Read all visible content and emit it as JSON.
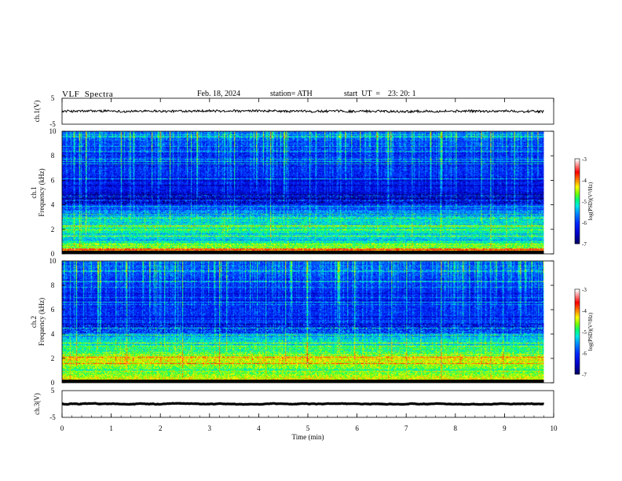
{
  "header": {
    "title": "VLF  Spectra",
    "date": "Feb. 18, 2024",
    "station": "station= ATH",
    "start": "start  UT  =    23: 20: 1"
  },
  "chart_data": [
    {
      "type": "line",
      "name": "ch1-waveform",
      "ylabel": "ch.1(V)",
      "yticks": [
        "5",
        "-5"
      ],
      "ylim": [
        -5,
        5
      ],
      "x_range": [
        0,
        9.8
      ],
      "baseline": 0.0,
      "noise_amplitude": 0.6
    },
    {
      "type": "heatmap",
      "name": "ch1-spectrogram",
      "ylabel": "ch.1\nFrequency (kHz)",
      "ylabel_lines": [
        "ch.1",
        "Frequency (kHz)"
      ],
      "yticks": [
        "0",
        "2",
        "4",
        "6",
        "8",
        "10"
      ],
      "ylim": [
        0,
        10
      ],
      "x_range": [
        0,
        9.8
      ],
      "colorbar": {
        "label": "log(PSD)(V²/Hz)",
        "ticks": [
          "-3",
          "-4",
          "-5",
          "-6",
          "-7"
        ],
        "range": [
          -7,
          -3
        ],
        "colors": [
          "#000060",
          "#0000ff",
          "#00a0ff",
          "#00ffff",
          "#00ff80",
          "#80ff00",
          "#ffff00",
          "#ff8000",
          "#ff0000",
          "#ffffff"
        ]
      },
      "band_levels": [
        {
          "f": 0.3,
          "level": -4.2
        },
        {
          "f": 0.8,
          "level": -4.6
        },
        {
          "f": 1.2,
          "level": -5.3
        },
        {
          "f": 2.2,
          "level": -4.9
        },
        {
          "f": 3.5,
          "level": -5.6
        },
        {
          "f": 4.5,
          "level": -6.4
        },
        {
          "f": 6.5,
          "level": -6.1
        },
        {
          "f": 8.5,
          "level": -6.0
        },
        {
          "f": 10.0,
          "level": -5.7
        }
      ]
    },
    {
      "type": "heatmap",
      "name": "ch2-spectrogram",
      "ylabel": "ch.2\nFrequency (kHz)",
      "ylabel_lines": [
        "ch.2",
        "Frequency (kHz)"
      ],
      "yticks": [
        "0",
        "2",
        "4",
        "6",
        "8",
        "10"
      ],
      "ylim": [
        0,
        10
      ],
      "x_range": [
        0,
        9.8
      ],
      "colorbar": {
        "label": "log(PSD)(V²/Hz)",
        "ticks": [
          "-3",
          "-4",
          "-5",
          "-6",
          "-7"
        ],
        "range": [
          -7,
          -3
        ]
      },
      "band_levels": [
        {
          "f": 0.3,
          "level": -4.3
        },
        {
          "f": 1.0,
          "level": -4.8
        },
        {
          "f": 2.0,
          "level": -4.3
        },
        {
          "f": 3.0,
          "level": -5.0
        },
        {
          "f": 4.0,
          "level": -5.5
        },
        {
          "f": 5.0,
          "level": -6.0
        },
        {
          "f": 7.0,
          "level": -6.2
        },
        {
          "f": 8.5,
          "level": -6.0
        },
        {
          "f": 10.0,
          "level": -5.7
        }
      ]
    },
    {
      "type": "line",
      "name": "ch3-waveform",
      "ylabel": "ch.3(V)",
      "yticks": [
        "5",
        "-5"
      ],
      "ylim": [
        -5,
        5
      ],
      "x_range": [
        0,
        9.8
      ],
      "baseline": 0.0,
      "noise_amplitude": 0.05
    }
  ],
  "x_axis": {
    "label": "Time  (min)",
    "ticks": [
      "0",
      "1",
      "2",
      "3",
      "4",
      "5",
      "6",
      "7",
      "8",
      "9",
      "10"
    ],
    "range": [
      0,
      10
    ]
  }
}
